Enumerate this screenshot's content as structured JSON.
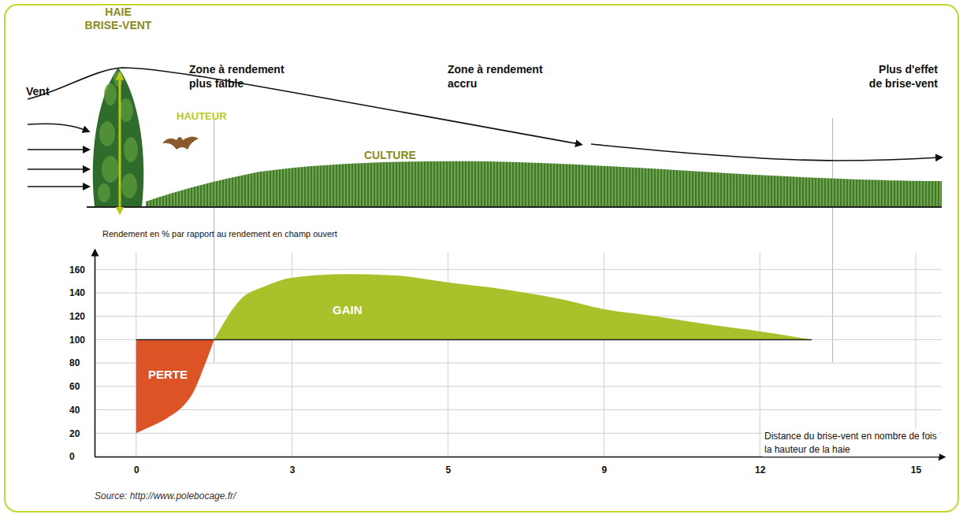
{
  "chart_data": {
    "type": "area",
    "y_label": "Rendement en % par rapport au rendement en champ ouvert",
    "x_label": "Distance du brise-vent en nombre de fois la hauteur de la haie",
    "source": "Source: http://www.polebocage.fr/",
    "xlim": [
      -0.8,
      15.5
    ],
    "xticks": [
      0,
      3,
      5,
      9,
      12,
      15
    ],
    "ylim": [
      0,
      175
    ],
    "yticks": [
      0,
      20,
      40,
      60,
      80,
      100,
      120,
      140,
      160
    ],
    "grid": true,
    "baseline": 100,
    "zone_boundaries": [
      1.5,
      13.4
    ],
    "series": [
      {
        "name": "PERTE",
        "color": "#dc5426",
        "x": [
          0,
          0.3,
          0.6,
          0.9,
          1.1,
          1.3,
          1.5
        ],
        "values": [
          20,
          26,
          33,
          43,
          55,
          76,
          100
        ]
      },
      {
        "name": "GAIN",
        "color": "#a9c12a",
        "x": [
          1.5,
          2,
          2.5,
          3,
          3.7,
          4.3,
          5,
          6,
          7,
          8,
          9,
          10,
          11,
          12,
          13
        ],
        "values": [
          100,
          134,
          146,
          153,
          156,
          155,
          149,
          145,
          140,
          134,
          126,
          120,
          113,
          107,
          100
        ]
      }
    ]
  },
  "diagram": {
    "hedge_label": [
      "HAIE",
      "BRISE-VENT"
    ],
    "wind_label": "Vent",
    "height_label": "HAUTEUR",
    "crop_label": "CULTURE",
    "zone_labels": [
      [
        "Zone à rendement",
        "plus faible"
      ],
      [
        "Zone à rendement",
        "accru"
      ],
      [
        "Plus d'effet",
        "de brise-vent"
      ]
    ]
  }
}
